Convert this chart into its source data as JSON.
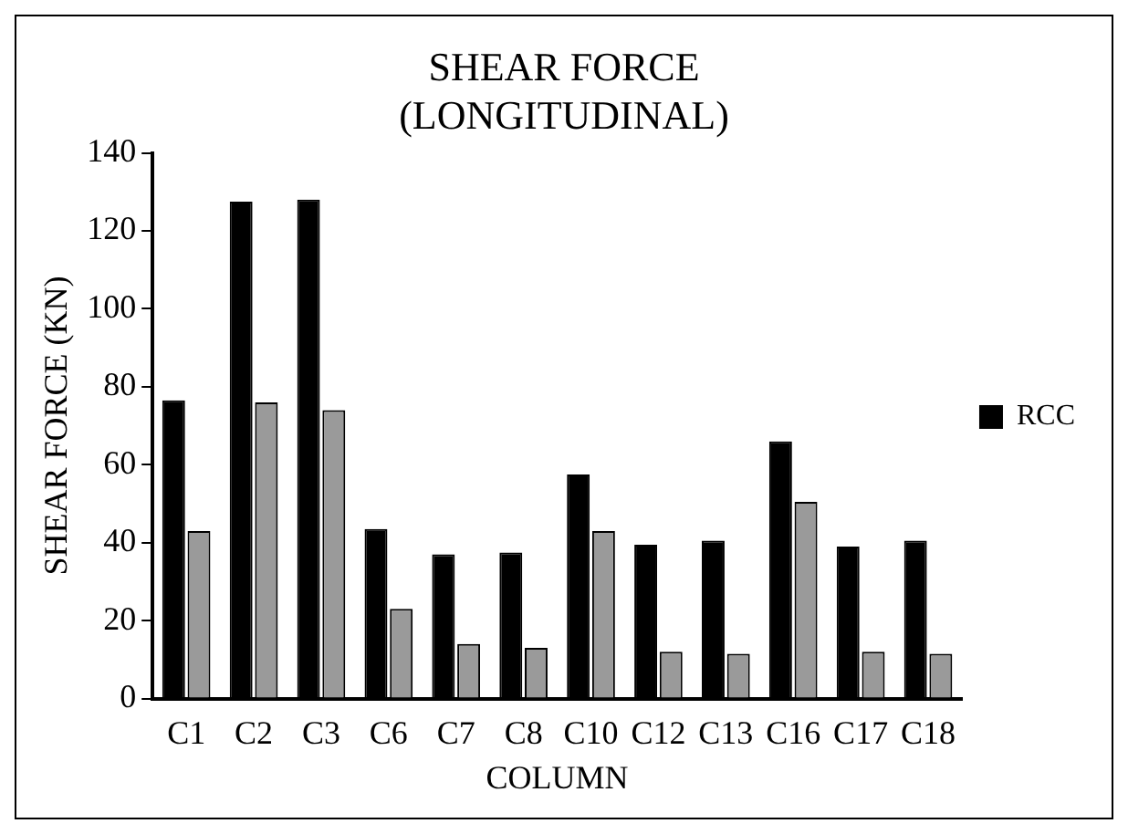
{
  "chart_data": {
    "type": "bar",
    "title": "SHEAR FORCE\n(LONGITUDINAL)",
    "xlabel": "COLUMN",
    "ylabel": "SHEAR FORCE (KN)",
    "categories": [
      "C1",
      "C2",
      "C3",
      "C6",
      "C7",
      "C8",
      "C10",
      "C12",
      "C13",
      "C16",
      "C17",
      "C18"
    ],
    "series": [
      {
        "name": "RCC",
        "color": "#000000",
        "values": [
          76.5,
          127.5,
          128,
          43.5,
          37,
          37.5,
          57.5,
          39.5,
          40.5,
          66,
          39,
          40.5
        ]
      },
      {
        "color": "#9a9a9a",
        "values": [
          43,
          76,
          74,
          23,
          14,
          13,
          43,
          12,
          11.5,
          50.5,
          12,
          11.5
        ]
      }
    ],
    "ylim": [
      0,
      140
    ],
    "yticks": [
      0,
      20,
      40,
      60,
      80,
      100,
      120,
      140
    ],
    "grid": false,
    "legend": "right"
  }
}
